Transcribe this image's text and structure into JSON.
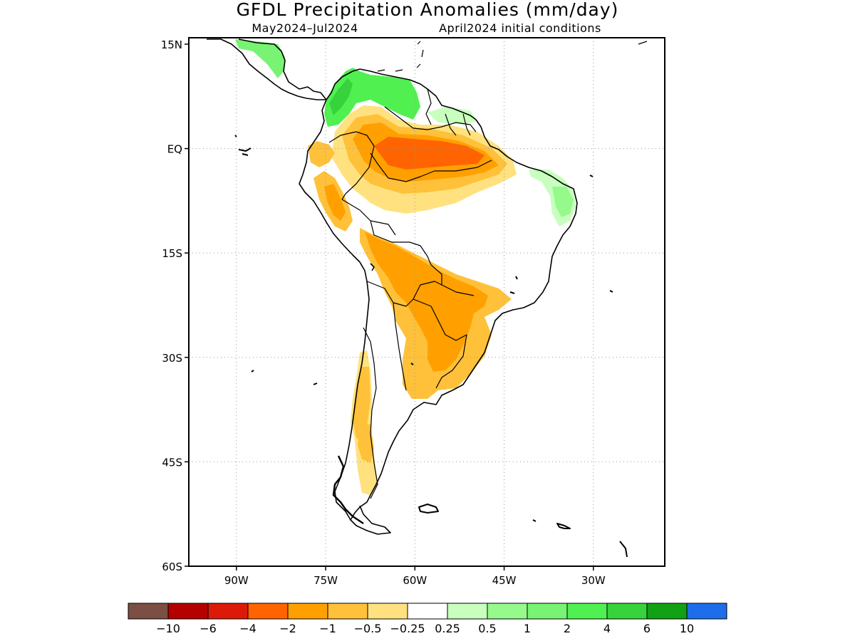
{
  "title": "GFDL Precipitation Anomalies (mm/day)",
  "subtitle_left": "May2024–Jul2024",
  "subtitle_right": "April2024 initial conditions",
  "map": {
    "lat_range": [
      -60,
      15
    ],
    "lon_range": [
      -98,
      -18
    ],
    "lat_ticks": [
      {
        "value": 15,
        "label": "15N"
      },
      {
        "value": 0,
        "label": "EQ"
      },
      {
        "value": -15,
        "label": "15S"
      },
      {
        "value": -30,
        "label": "30S"
      },
      {
        "value": -45,
        "label": "45S"
      },
      {
        "value": -60,
        "label": "60S"
      }
    ],
    "lon_ticks": [
      {
        "value": -90,
        "label": "90W"
      },
      {
        "value": -75,
        "label": "75W"
      },
      {
        "value": -60,
        "label": "60W"
      },
      {
        "value": -45,
        "label": "45W"
      },
      {
        "value": -30,
        "label": "30W"
      }
    ],
    "gridlines": "dotted"
  },
  "colorbar": {
    "colors": [
      "#7b4f44",
      "#b50000",
      "#dd1a0a",
      "#ff6400",
      "#ffa000",
      "#ffc13a",
      "#ffe27f",
      "#ffffff",
      "#c8ffbf",
      "#96f98b",
      "#78f373",
      "#50f050",
      "#37d33c",
      "#10a114",
      "#1e6eeb"
    ],
    "labels": [
      "−10",
      "−6",
      "−4",
      "−2",
      "−1",
      "−0.5",
      "−0.25",
      "0.25",
      "0.5",
      "1",
      "2",
      "4",
      "6",
      "10"
    ]
  },
  "anomaly_regions": [
    {
      "name": "southern-caribbean-wet",
      "color": "#78f373"
    },
    {
      "name": "colombia-wet",
      "color": "#50f050"
    },
    {
      "name": "northeast-brazil-wet",
      "color": "#c8ffbf"
    },
    {
      "name": "amazon-dry",
      "color": "#ffa000"
    },
    {
      "name": "amazon-core-dry",
      "color": "#ff6400"
    },
    {
      "name": "andes-dry",
      "color": "#ffc13a"
    },
    {
      "name": "parana-dry",
      "color": "#ffc13a"
    },
    {
      "name": "chile-dry",
      "color": "#ffc13a"
    }
  ]
}
